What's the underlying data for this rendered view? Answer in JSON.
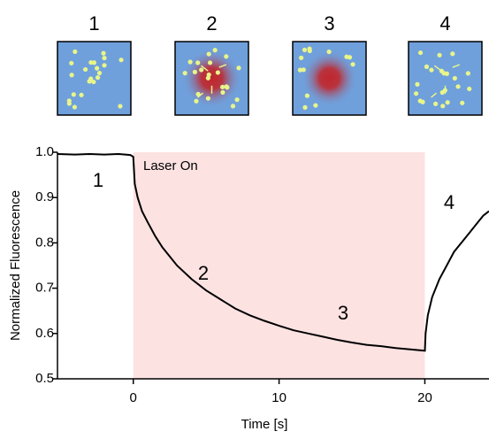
{
  "chart_data": {
    "type": "line",
    "panel_labels": [
      "1",
      "2",
      "3",
      "4"
    ],
    "xlabel": "Time [s]",
    "ylabel": "Normalized Fluorescence",
    "annotations": [
      "Laser On",
      "1",
      "2",
      "3",
      "4"
    ],
    "shade": [
      0,
      20
    ],
    "shade_color": "#fde2e2",
    "color": "#000000",
    "x": [
      -5.2,
      -4,
      -3,
      -2,
      -1,
      -0.2,
      0,
      0.1,
      0.3,
      0.6,
      1,
      1.5,
      2,
      3,
      4,
      5,
      6,
      7,
      8,
      9,
      10,
      11,
      12,
      13,
      14,
      15,
      16,
      17,
      18,
      19,
      20,
      20.05,
      20.2,
      20.5,
      21,
      21.5,
      22,
      22.5,
      23,
      23.5,
      24,
      24.4
    ],
    "values": [
      0.996,
      0.995,
      0.996,
      0.995,
      0.996,
      0.994,
      0.99,
      0.93,
      0.9,
      0.87,
      0.845,
      0.815,
      0.79,
      0.75,
      0.72,
      0.695,
      0.675,
      0.655,
      0.64,
      0.628,
      0.617,
      0.607,
      0.6,
      0.593,
      0.586,
      0.58,
      0.575,
      0.572,
      0.568,
      0.565,
      0.562,
      0.6,
      0.64,
      0.68,
      0.72,
      0.75,
      0.78,
      0.8,
      0.82,
      0.84,
      0.86,
      0.87
    ],
    "xlim": [
      -5.2,
      24.4
    ],
    "ylim": [
      0.5,
      1.0
    ],
    "xticks": [
      0,
      10,
      20
    ],
    "yticks": [
      0.5,
      0.6,
      0.7,
      0.8,
      0.9,
      {
        "value": 1,
        "label": "1.0"
      }
    ]
  }
}
